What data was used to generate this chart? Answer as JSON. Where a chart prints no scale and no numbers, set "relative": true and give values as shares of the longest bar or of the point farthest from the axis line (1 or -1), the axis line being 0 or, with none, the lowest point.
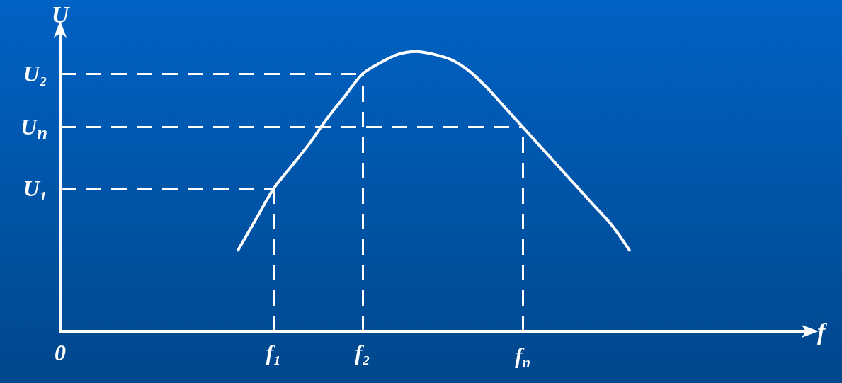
{
  "chart_data": {
    "type": "line",
    "xlabel": "f",
    "ylabel": "U",
    "relative": true,
    "categories": [
      "0",
      null,
      null,
      null,
      null,
      null,
      null,
      null,
      null,
      null,
      null,
      null,
      "f₁",
      null,
      null,
      null,
      null,
      "f₂",
      null,
      null,
      null,
      null,
      null,
      null,
      null,
      null,
      "f$_{п}$",
      null,
      null,
      null,
      null,
      null,
      null,
      null,
      null,
      null,
      null,
      null,
      null,
      null,
      null,
      null,
      null
    ],
    "values": [
      null,
      null,
      null,
      null,
      null,
      null,
      null,
      null,
      null,
      null,
      0.29,
      0.4,
      0.51,
      0.59,
      0.67,
      0.76,
      0.84,
      0.92,
      0.96,
      0.99,
      1,
      0.99,
      0.97,
      0.93,
      0.87,
      0.8,
      0.73,
      0.66,
      0.59,
      0.52,
      0.45,
      0.38,
      0.29,
      null,
      null,
      null,
      null,
      null,
      null,
      null,
      null,
      null,
      null
    ],
    "color": "#ffffff",
    "marker": "none",
    "line_style": "solid",
    "ref_lines": [
      {
        "axis": "y",
        "value": 0.51,
        "label": "U₁",
        "color": "#ffffff",
        "line_style": "dashed"
      },
      {
        "axis": "y",
        "value": 0.92,
        "label": "U₂",
        "color": "#ffffff",
        "line_style": "dashed"
      },
      {
        "axis": "y",
        "value": 0.73,
        "label": "U$_{п}$",
        "color": "#ffffff",
        "line_style": "dashed"
      },
      {
        "axis": "x",
        "value": "f₁",
        "color": "#ffffff",
        "line_style": "dashed"
      },
      {
        "axis": "x",
        "value": "f₂",
        "color": "#ffffff",
        "line_style": "dashed"
      },
      {
        "axis": "x",
        "value": "f$_{п}$",
        "color": "#ffffff",
        "line_style": "dashed"
      }
    ]
  }
}
